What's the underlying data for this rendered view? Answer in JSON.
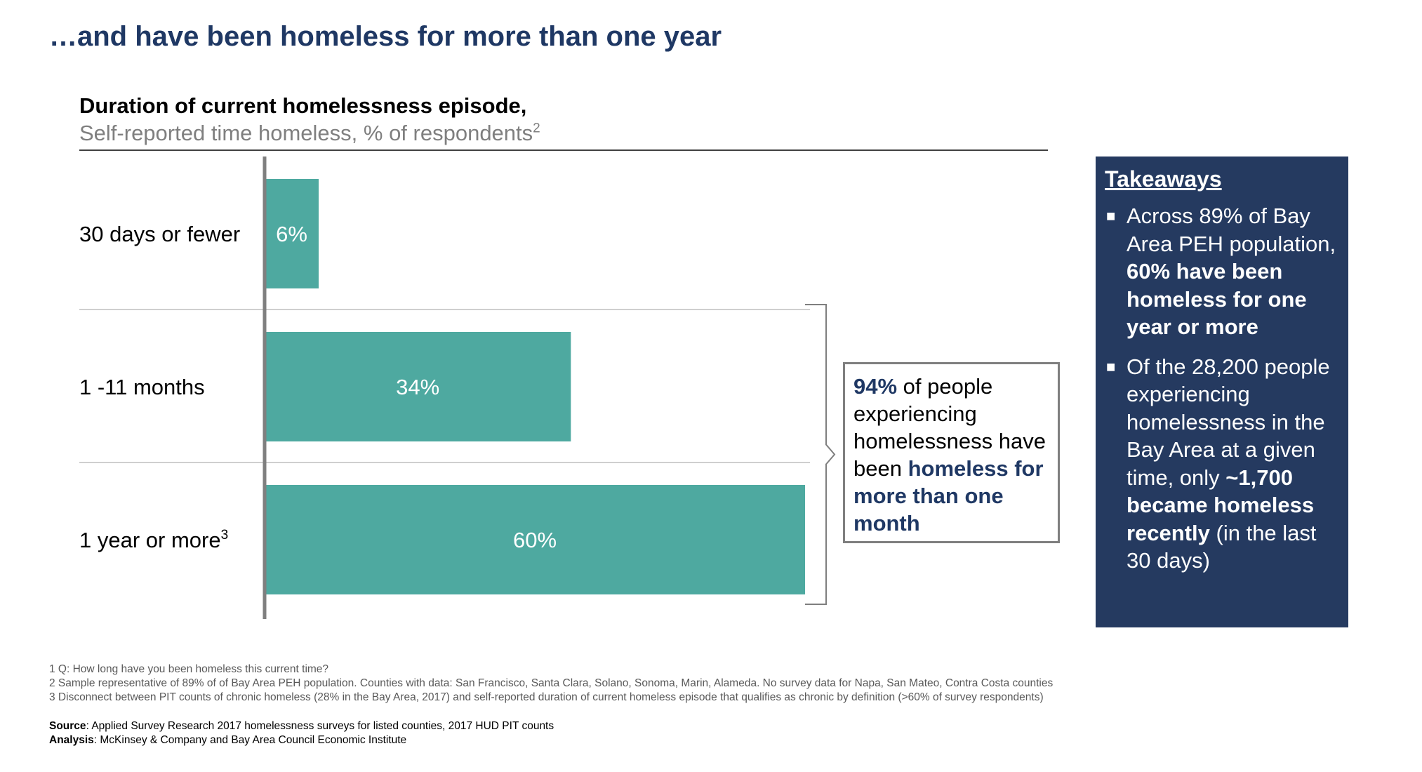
{
  "page_title": "…and have been homeless for more than one year",
  "chart_data": {
    "type": "bar",
    "orientation": "horizontal",
    "title": "Duration of current homelessness episode,",
    "subtitle": "Self-reported time homeless, % of respondents",
    "subtitle_sup": "2",
    "categories": [
      "30 days or fewer",
      "1 -11 months",
      "1 year or more"
    ],
    "category_sups": [
      "",
      "",
      "3"
    ],
    "values": [
      6,
      34,
      60
    ],
    "value_labels": [
      "6%",
      "34%",
      "60%"
    ],
    "xlim": [
      0,
      60
    ],
    "bar_color": "#4ea9a0",
    "grid": false
  },
  "callout": {
    "part1_bold": "94%",
    "part2": " of people experiencing homelessness have been ",
    "part3_bold": "homeless for more than one month"
  },
  "takeaways": {
    "heading": "Takeaways",
    "bullet_icon": "square-bullet-icon",
    "items": [
      {
        "plain1": "Across 89% of Bay Area PEH population, ",
        "bold1": "60% have been homeless for one year or more",
        "plain2": "",
        "bold2": "",
        "plain3": ""
      },
      {
        "plain1": "Of the 28,200 people experiencing homelessness in the Bay Area at a given time, only ",
        "bold1": "~1,700 became homeless recently",
        "plain2": " (in the last 30 days)",
        "bold2": "",
        "plain3": ""
      }
    ]
  },
  "footnotes": [
    "1  Q: How long have you been homeless this current time?",
    "2 Sample representative of 89% of of Bay Area PEH population. Counties with data: San Francisco, Santa Clara, Solano, Sonoma, Marin, Alameda. No survey data for Napa, San Mateo, Contra Costa counties",
    "3 Disconnect between PIT counts of chronic homeless (28% in the Bay Area, 2017) and self-reported duration of current homeless episode that qualifies as chronic by definition (>60% of survey respondents)"
  ],
  "source": {
    "source_label": "Source",
    "source_text": ": Applied Survey Research 2017 homelessness surveys for listed counties, 2017 HUD PIT counts",
    "analysis_label": "Analysis",
    "analysis_text": ": McKinsey & Company and Bay Area Council Economic Institute"
  },
  "colors": {
    "title_navy": "#1f3864",
    "panel_navy": "#253a60",
    "bar_teal": "#4ea9a0",
    "axis_gray": "#7f7f7f"
  }
}
